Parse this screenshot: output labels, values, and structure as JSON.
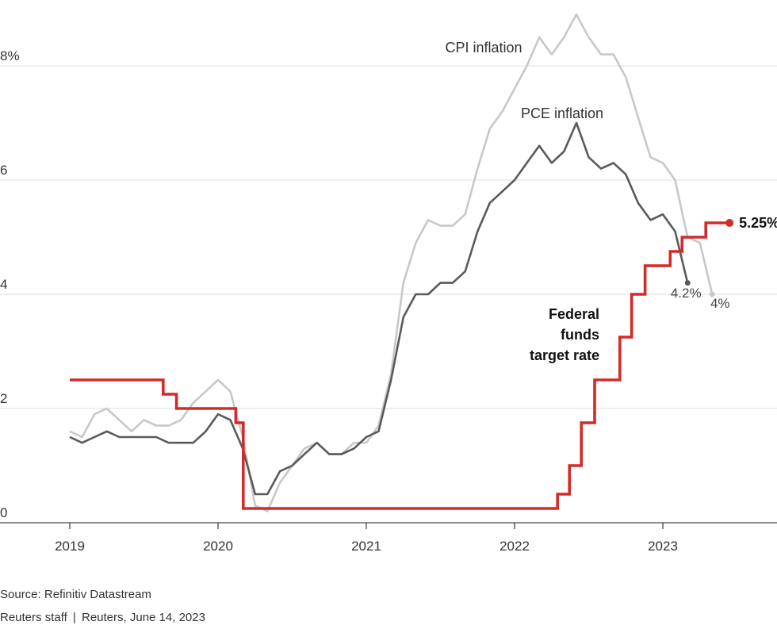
{
  "chart_data": {
    "type": "line",
    "title": "",
    "xlabel": "",
    "ylabel": "",
    "ylim": [
      0,
      9
    ],
    "y_ticks": [
      {
        "value": 0,
        "label": "0"
      },
      {
        "value": 2,
        "label": "2"
      },
      {
        "value": 4,
        "label": "4"
      },
      {
        "value": 6,
        "label": "6"
      },
      {
        "value": 8,
        "label": "8%"
      }
    ],
    "x_ticks": [
      {
        "value": 2019,
        "label": "2019"
      },
      {
        "value": 2020,
        "label": "2020"
      },
      {
        "value": 2021,
        "label": "2021"
      },
      {
        "value": 2022,
        "label": "2022"
      },
      {
        "value": 2023,
        "label": "2023"
      }
    ],
    "series": [
      {
        "name": "CPI inflation",
        "label": "CPI inflation",
        "color": "#c8c8c8",
        "end_label": "4%",
        "x": [
          2019.0,
          2019.083,
          2019.167,
          2019.25,
          2019.333,
          2019.417,
          2019.5,
          2019.583,
          2019.667,
          2019.75,
          2019.833,
          2019.917,
          2020.0,
          2020.083,
          2020.167,
          2020.25,
          2020.333,
          2020.417,
          2020.5,
          2020.583,
          2020.667,
          2020.75,
          2020.833,
          2020.917,
          2021.0,
          2021.083,
          2021.167,
          2021.25,
          2021.333,
          2021.417,
          2021.5,
          2021.583,
          2021.667,
          2021.75,
          2021.833,
          2021.917,
          2022.0,
          2022.083,
          2022.167,
          2022.25,
          2022.333,
          2022.417,
          2022.5,
          2022.583,
          2022.667,
          2022.75,
          2022.833,
          2022.917,
          2023.0,
          2023.083,
          2023.167,
          2023.25,
          2023.333
        ],
        "values": [
          1.6,
          1.5,
          1.9,
          2.0,
          1.8,
          1.6,
          1.8,
          1.7,
          1.7,
          1.8,
          2.1,
          2.3,
          2.5,
          2.3,
          1.5,
          0.3,
          0.2,
          0.7,
          1.0,
          1.3,
          1.4,
          1.2,
          1.2,
          1.4,
          1.4,
          1.7,
          2.6,
          4.2,
          4.9,
          5.3,
          5.2,
          5.2,
          5.4,
          6.2,
          6.9,
          7.2,
          7.6,
          8.0,
          8.5,
          8.2,
          8.5,
          8.9,
          8.5,
          8.2,
          8.2,
          7.8,
          7.1,
          6.4,
          6.3,
          6.0,
          5.0,
          4.9,
          4.0
        ]
      },
      {
        "name": "PCE inflation",
        "label": "PCE inflation",
        "color": "#5a5a5a",
        "end_label": "4.2%",
        "x": [
          2019.0,
          2019.083,
          2019.167,
          2019.25,
          2019.333,
          2019.417,
          2019.5,
          2019.583,
          2019.667,
          2019.75,
          2019.833,
          2019.917,
          2020.0,
          2020.083,
          2020.167,
          2020.25,
          2020.333,
          2020.417,
          2020.5,
          2020.583,
          2020.667,
          2020.75,
          2020.833,
          2020.917,
          2021.0,
          2021.083,
          2021.167,
          2021.25,
          2021.333,
          2021.417,
          2021.5,
          2021.583,
          2021.667,
          2021.75,
          2021.833,
          2021.917,
          2022.0,
          2022.083,
          2022.167,
          2022.25,
          2022.333,
          2022.417,
          2022.5,
          2022.583,
          2022.667,
          2022.75,
          2022.833,
          2022.917,
          2023.0,
          2023.083,
          2023.167
        ],
        "values": [
          1.5,
          1.4,
          1.5,
          1.6,
          1.5,
          1.5,
          1.5,
          1.5,
          1.4,
          1.4,
          1.4,
          1.6,
          1.9,
          1.8,
          1.3,
          0.5,
          0.5,
          0.9,
          1.0,
          1.2,
          1.4,
          1.2,
          1.2,
          1.3,
          1.5,
          1.6,
          2.5,
          3.6,
          4.0,
          4.0,
          4.2,
          4.2,
          4.4,
          5.1,
          5.6,
          5.8,
          6.0,
          6.3,
          6.6,
          6.3,
          6.5,
          7.0,
          6.4,
          6.2,
          6.3,
          6.1,
          5.6,
          5.3,
          5.4,
          5.1,
          4.2
        ]
      },
      {
        "name": "Federal funds target rate",
        "label_lines": [
          "Federal",
          "funds",
          "target rate"
        ],
        "color": "#d42a2a",
        "end_label": "5.25%",
        "step_x": [
          2019.0,
          2019.55,
          2019.63,
          2019.72,
          2020.12,
          2020.17,
          2022.13,
          2022.29,
          2022.37,
          2022.45,
          2022.54,
          2022.71,
          2022.79,
          2022.88,
          2023.05,
          2023.13,
          2023.29,
          2023.45
        ],
        "step_values": [
          2.5,
          2.5,
          2.25,
          2.0,
          1.75,
          0.25,
          0.25,
          0.5,
          1.0,
          1.75,
          2.5,
          3.25,
          4.0,
          4.5,
          4.75,
          5.0,
          5.25,
          5.25
        ]
      }
    ]
  },
  "footer": {
    "source": "Source: Refinitiv Datastream",
    "credit": "Reuters staff  |  Reuters, June 14, 2023"
  }
}
